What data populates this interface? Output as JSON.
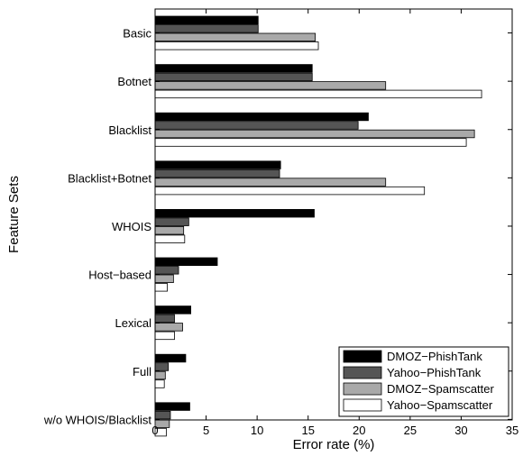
{
  "chart_data": {
    "type": "bar",
    "orientation": "horizontal",
    "xlabel": "Error rate (%)",
    "ylabel": "Feature Sets",
    "xlim": [
      0,
      35
    ],
    "xticks": [
      0,
      5,
      10,
      15,
      20,
      25,
      30,
      35
    ],
    "legend_position": "bottom-right",
    "grid": false,
    "categories": [
      "Basic",
      "Botnet",
      "Blacklist",
      "Blacklist+Botnet",
      "WHOIS",
      "Host−based",
      "Lexical",
      "Full",
      "w/o WHOIS/Blacklist"
    ],
    "series": [
      {
        "name": "DMOZ−PhishTank",
        "color": "#000000",
        "values": [
          10.1,
          15.4,
          20.9,
          12.3,
          15.6,
          6.1,
          3.5,
          3.0,
          3.4
        ]
      },
      {
        "name": "Yahoo−PhishTank",
        "color": "#555555",
        "values": [
          10.1,
          15.4,
          19.9,
          12.2,
          3.3,
          2.3,
          1.9,
          1.3,
          1.5
        ]
      },
      {
        "name": "DMOZ−Spamscatter",
        "color": "#a9a9a9",
        "values": [
          15.7,
          22.6,
          31.3,
          22.6,
          2.8,
          1.8,
          2.7,
          1.0,
          1.4
        ]
      },
      {
        "name": "Yahoo−Spamscatter",
        "color": "#ffffff",
        "values": [
          16.0,
          32.0,
          30.5,
          26.4,
          2.9,
          1.2,
          1.9,
          0.9,
          1.1
        ]
      }
    ]
  }
}
